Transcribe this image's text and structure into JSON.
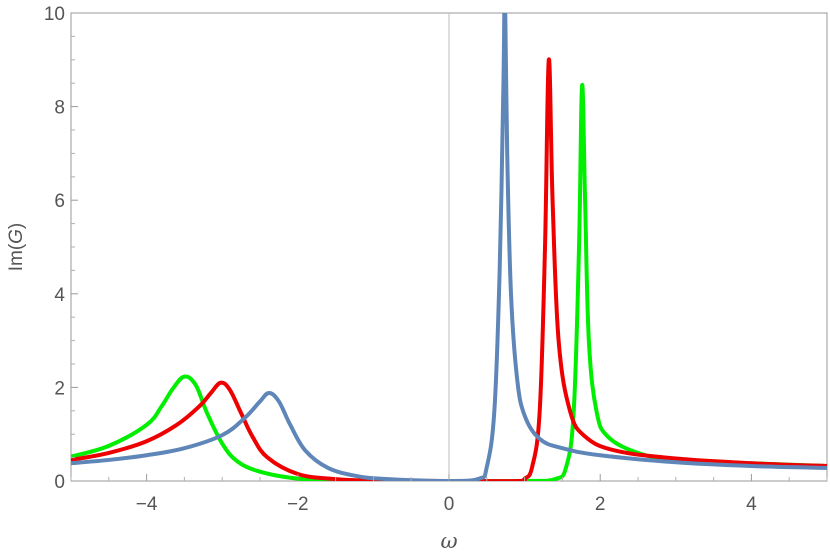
{
  "chart_data": {
    "type": "line",
    "xlabel": "ω",
    "ylabel_prefix": "Im(",
    "ylabel_var": "G",
    "ylabel_suffix": ")",
    "xlim": [
      -5,
      5
    ],
    "ylim": [
      0,
      10
    ],
    "x_ticks": [
      -4,
      -2,
      0,
      2,
      4
    ],
    "x_tick_labels": [
      "−4",
      "−2",
      "0",
      "2",
      "4"
    ],
    "y_ticks": [
      0,
      2,
      4,
      6,
      8,
      10
    ],
    "y_tick_labels": [
      "0",
      "2",
      "4",
      "6",
      "8",
      "10"
    ],
    "grid": false,
    "legend": "none",
    "series": [
      {
        "color": "#00ee00",
        "x": [
          -5,
          -4.5,
          -4,
          -3.8,
          -3.65,
          -3.5,
          -3.35,
          -3.2,
          -3.0,
          -2.8,
          -2.5,
          -2.0,
          -1.5,
          -1.0,
          0.0,
          1.0,
          1.4,
          1.55,
          1.65,
          1.72,
          1.76,
          1.8,
          1.85,
          1.95,
          2.1,
          2.5,
          3.0,
          4.0,
          5.0
        ],
        "values": [
          0.52,
          0.75,
          1.2,
          1.6,
          1.98,
          2.23,
          2.05,
          1.45,
          0.8,
          0.42,
          0.2,
          0.05,
          0.01,
          0.0,
          0.0,
          0.0,
          0.04,
          0.3,
          1.5,
          5.0,
          8.45,
          6.0,
          3.0,
          1.5,
          0.95,
          0.6,
          0.45,
          0.38,
          0.32
        ]
      },
      {
        "color": "#ee0000",
        "x": [
          -5,
          -4.5,
          -4.0,
          -3.6,
          -3.3,
          -3.15,
          -3.02,
          -2.9,
          -2.75,
          -2.6,
          -2.4,
          -2.0,
          -1.5,
          -1.0,
          0.0,
          0.9,
          1.0,
          1.1,
          1.2,
          1.27,
          1.32,
          1.37,
          1.45,
          1.6,
          1.8,
          2.2,
          3.0,
          4.0,
          5.0
        ],
        "values": [
          0.45,
          0.6,
          0.85,
          1.2,
          1.6,
          1.88,
          2.1,
          1.95,
          1.45,
          0.95,
          0.5,
          0.15,
          0.04,
          0.01,
          0.0,
          0.0,
          0.05,
          0.3,
          1.5,
          5.0,
          9.0,
          6.0,
          3.0,
          1.5,
          0.95,
          0.65,
          0.48,
          0.38,
          0.32
        ]
      },
      {
        "color": "#5f86b8",
        "x": [
          -5,
          -4.5,
          -4.0,
          -3.5,
          -3.0,
          -2.7,
          -2.5,
          -2.38,
          -2.25,
          -2.1,
          -1.9,
          -1.6,
          -1.2,
          -0.8,
          0.0,
          0.4,
          0.5,
          0.6,
          0.67,
          0.72,
          0.74,
          0.77,
          0.82,
          0.9,
          1.0,
          1.2,
          1.5,
          2.0,
          3.0,
          4.0,
          5.0
        ],
        "values": [
          0.38,
          0.45,
          0.55,
          0.7,
          0.98,
          1.35,
          1.7,
          1.88,
          1.7,
          1.2,
          0.65,
          0.28,
          0.1,
          0.04,
          0.0,
          0.05,
          0.3,
          1.5,
          4.5,
          8.5,
          10.5,
          7.0,
          4.0,
          2.2,
          1.4,
          0.9,
          0.7,
          0.55,
          0.4,
          0.32,
          0.28
        ]
      }
    ]
  }
}
